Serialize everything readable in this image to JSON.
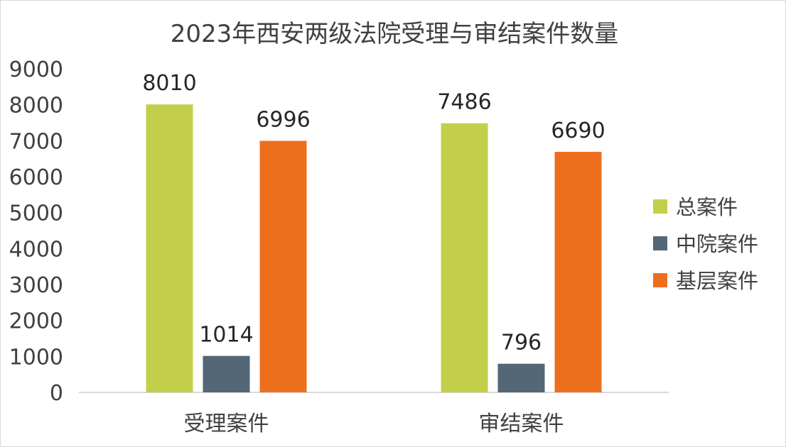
{
  "chart_data": {
    "type": "bar",
    "title": "2023年西安两级法院受理与审结案件数量",
    "categories": [
      "受理案件",
      "审结案件"
    ],
    "series": [
      {
        "name": "总案件",
        "values": [
          8010,
          7486
        ],
        "color": "#c3cf4b"
      },
      {
        "name": "中院案件",
        "values": [
          1014,
          796
        ],
        "color": "#536776"
      },
      {
        "name": "基层案件",
        "values": [
          6996,
          6690
        ],
        "color": "#ed6f1e"
      }
    ],
    "ylim": [
      0,
      9000
    ],
    "yticks": [
      0,
      1000,
      2000,
      3000,
      4000,
      5000,
      6000,
      7000,
      8000,
      9000
    ],
    "xlabel": "",
    "ylabel": "",
    "grid": false,
    "legend": "right"
  }
}
